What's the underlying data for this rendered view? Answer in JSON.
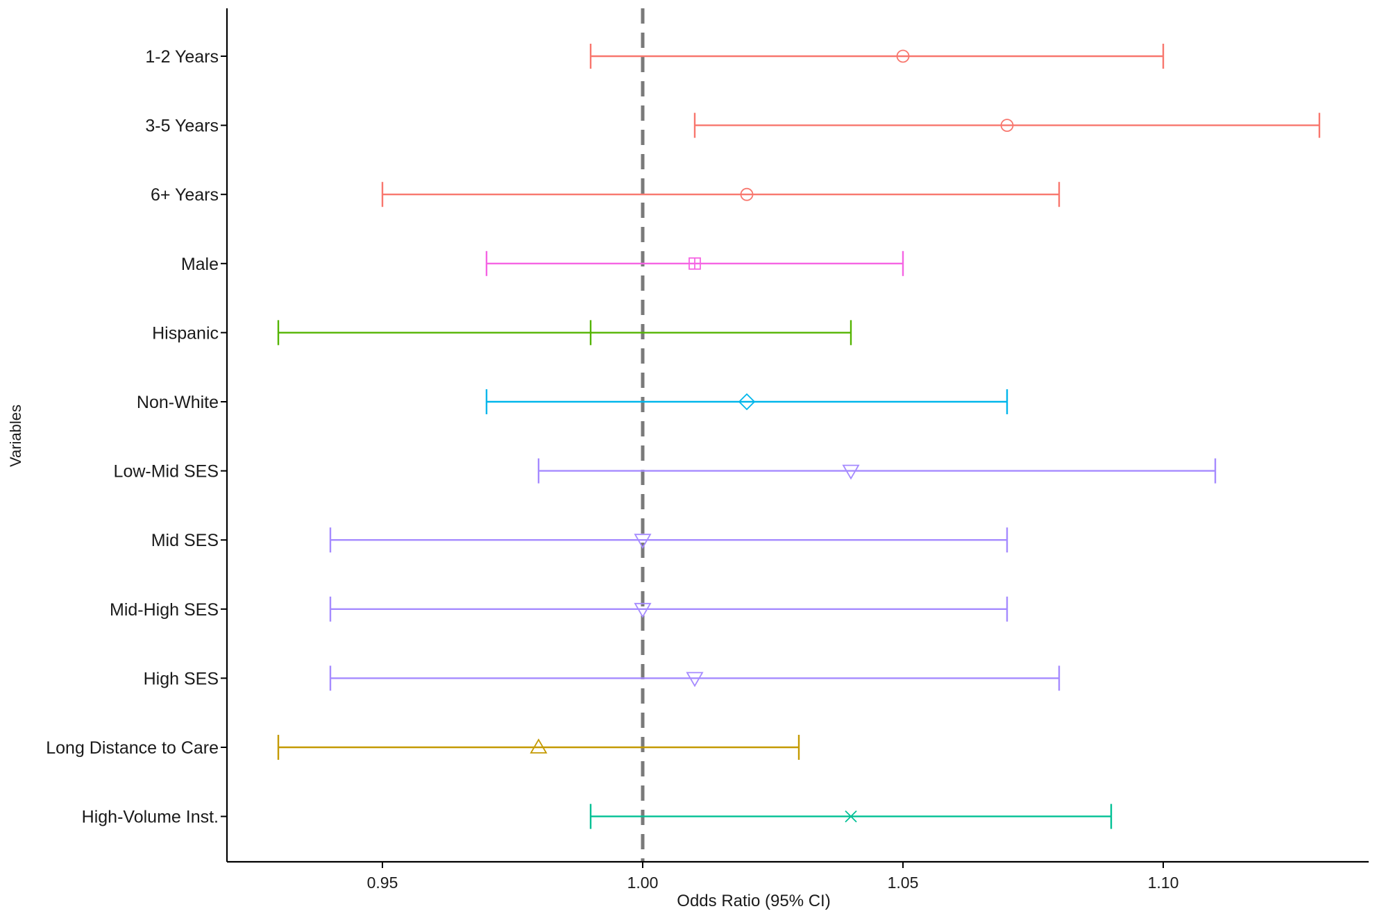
{
  "chart_data": {
    "type": "forest",
    "xlabel": "Odds Ratio (95% CI)",
    "ylabel": "Variables",
    "xlim": [
      0.92,
      1.14
    ],
    "x_ticks": [
      "0.95",
      "1.00",
      "1.05",
      "1.10"
    ],
    "reference_line": 1.0,
    "grid": false,
    "legend": "none",
    "rows": [
      {
        "label": "1-2 Years",
        "or": 1.05,
        "lower": 0.99,
        "upper": 1.1,
        "color": "#F8766D",
        "shape": "circle"
      },
      {
        "label": "3-5 Years",
        "or": 1.07,
        "lower": 1.01,
        "upper": 1.13,
        "color": "#F8766D",
        "shape": "circle"
      },
      {
        "label": "6+ Years",
        "or": 1.02,
        "lower": 0.95,
        "upper": 1.08,
        "color": "#F8766D",
        "shape": "circle"
      },
      {
        "label": "Male",
        "or": 1.01,
        "lower": 0.97,
        "upper": 1.05,
        "color": "#F564E3",
        "shape": "square-plus"
      },
      {
        "label": "Hispanic",
        "or": 0.99,
        "lower": 0.93,
        "upper": 1.04,
        "color": "#53B400",
        "shape": "tick"
      },
      {
        "label": "Non-White",
        "or": 1.02,
        "lower": 0.97,
        "upper": 1.07,
        "color": "#00B6EB",
        "shape": "diamond"
      },
      {
        "label": "Low-Mid SES",
        "or": 1.04,
        "lower": 0.98,
        "upper": 1.11,
        "color": "#A58AFF",
        "shape": "triangle-down"
      },
      {
        "label": "Mid SES",
        "or": 1.0,
        "lower": 0.94,
        "upper": 1.07,
        "color": "#A58AFF",
        "shape": "triangle-down"
      },
      {
        "label": "Mid-High SES",
        "or": 1.0,
        "lower": 0.94,
        "upper": 1.07,
        "color": "#A58AFF",
        "shape": "triangle-down"
      },
      {
        "label": "High SES",
        "or": 1.01,
        "lower": 0.94,
        "upper": 1.08,
        "color": "#A58AFF",
        "shape": "triangle-down"
      },
      {
        "label": "Long Distance to Care",
        "or": 0.98,
        "lower": 0.93,
        "upper": 1.03,
        "color": "#C49A00",
        "shape": "triangle-up"
      },
      {
        "label": "High-Volume Inst.",
        "or": 1.04,
        "lower": 0.99,
        "upper": 1.09,
        "color": "#00C094",
        "shape": "cross"
      }
    ]
  }
}
